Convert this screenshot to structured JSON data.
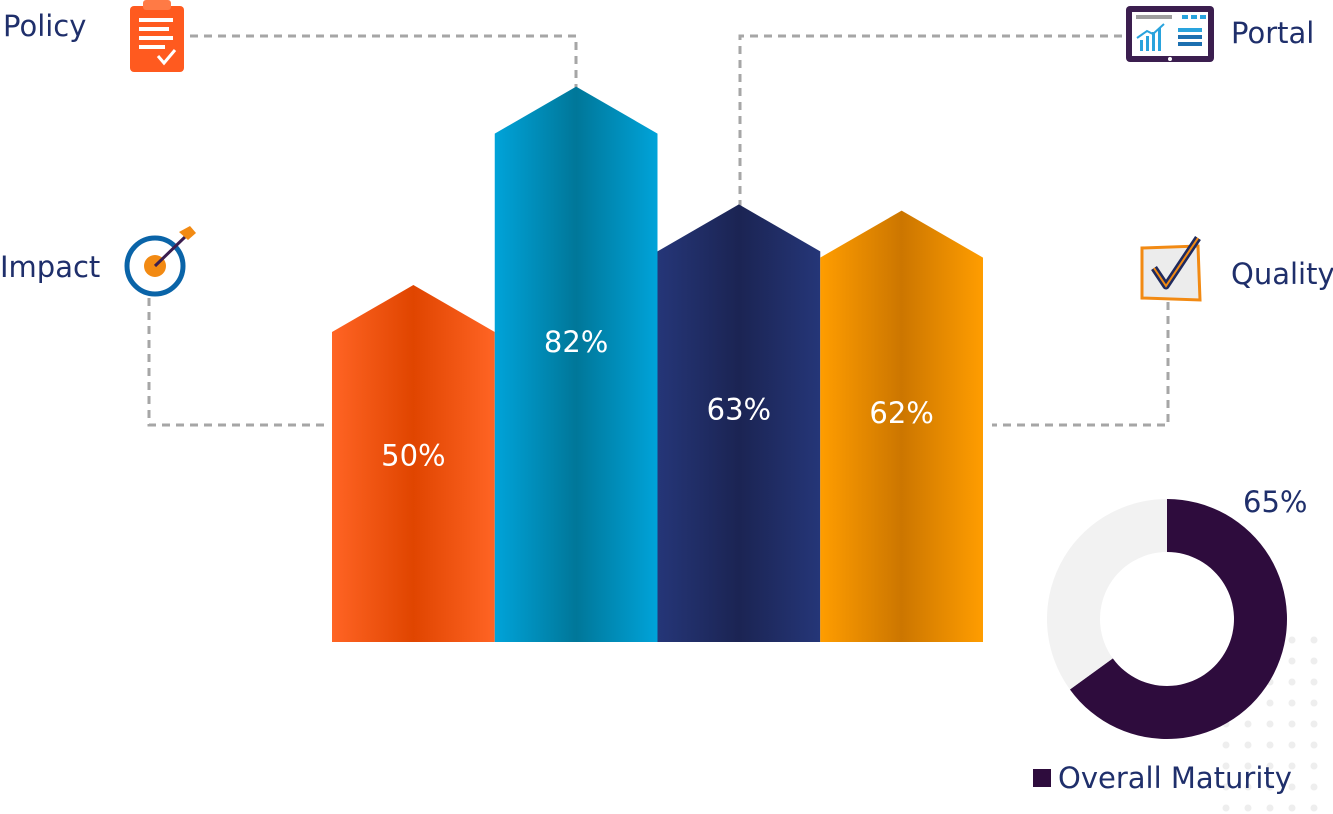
{
  "chart_data": [
    {
      "type": "bar",
      "categories": [
        "Impact",
        "Policy",
        "Portal",
        "Quality"
      ],
      "values": [
        50,
        82,
        63,
        62
      ],
      "value_labels": [
        "50%",
        "82%",
        "63%",
        "62%"
      ],
      "ylim": [
        0,
        100
      ],
      "grid": false,
      "colors": [
        "#e8470f",
        "#0086b3",
        "#1f2a5e",
        "#e08a00"
      ],
      "icons": [
        "target-icon",
        "clipboard-icon",
        "dashboard-icon",
        "checkbox-icon"
      ]
    },
    {
      "type": "pie",
      "categories": [
        "Overall Maturity",
        ""
      ],
      "values": [
        65,
        35
      ],
      "value_label": "65%",
      "colors": [
        "#2e0c3d",
        "#f2f2f2"
      ],
      "legend": {
        "label": "Overall Maturity",
        "placement": "bottom"
      }
    }
  ]
}
